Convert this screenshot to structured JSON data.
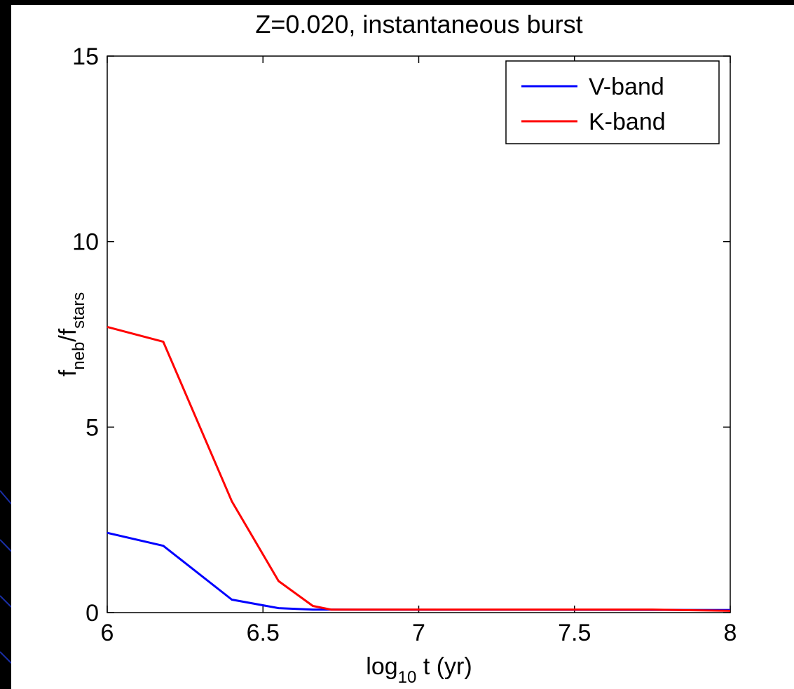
{
  "chart_data": {
    "type": "line",
    "title": "Z=0.020, instantaneous burst",
    "xlabel": {
      "base": "log",
      "sub": "10",
      "rest": " t (yr)"
    },
    "ylabel": {
      "f1": "f",
      "sub1": "neb",
      "slash": "/f",
      "sub2": "stars"
    },
    "xlim": [
      6,
      8
    ],
    "ylim": [
      0,
      15
    ],
    "xticks": [
      6,
      6.5,
      7,
      7.5,
      8
    ],
    "xtick_labels": [
      "6",
      "6.5",
      "7",
      "7.5",
      "8"
    ],
    "yticks": [
      0,
      5,
      10,
      15
    ],
    "ytick_labels": [
      "0",
      "5",
      "10",
      "15"
    ],
    "grid": false,
    "legend_position": "top-right",
    "series": [
      {
        "name": "V-band",
        "color": "#0000ff",
        "x": [
          6.0,
          6.18,
          6.4,
          6.55,
          6.66,
          6.72,
          8.0
        ],
        "y": [
          2.15,
          1.8,
          0.35,
          0.12,
          0.08,
          0.08,
          0.07
        ]
      },
      {
        "name": "K-band",
        "color": "#ff0000",
        "x": [
          6.0,
          6.18,
          6.4,
          6.55,
          6.66,
          6.72,
          7.75,
          8.0
        ],
        "y": [
          7.7,
          7.3,
          3.0,
          0.85,
          0.18,
          0.08,
          0.08,
          0.05
        ]
      }
    ]
  }
}
